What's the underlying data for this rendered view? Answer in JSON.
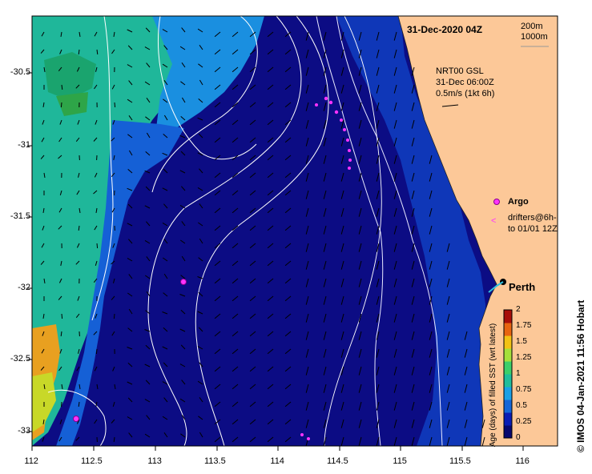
{
  "title": "31-Dec-2020 04Z",
  "isobath_legend": [
    "200m",
    "1000m"
  ],
  "current_info": [
    "NRT00 GSL",
    "31-Dec 06:00Z",
    "0.5m/s (1kt 6h)"
  ],
  "legend": {
    "argo": "Argo",
    "drifters": [
      "drifters@6h-",
      "to 01/01 12Z"
    ]
  },
  "city": "Perth",
  "colorbar": {
    "title": "Age (days) of filled SST (wrt latest)",
    "ticks": [
      "2",
      "1.75",
      "1.5",
      "1.25",
      "1",
      "0.75",
      "0.5",
      "0.25",
      "0"
    ],
    "colors": [
      "#08086e",
      "#0a1cb4",
      "#1466d8",
      "#1aa0e6",
      "#21bd9b",
      "#3ccf6a",
      "#a6e03a",
      "#f2c214",
      "#e86410",
      "#a80e0a"
    ]
  },
  "credit": "© IMOS 04-Jan-2021 11:56 Hobart",
  "axes": {
    "lon_ticks": [
      "112",
      "112.5",
      "113",
      "113.5",
      "114",
      "114.5",
      "115",
      "115.5",
      "116"
    ],
    "lat_ticks": [
      "-30.5",
      "-31",
      "-31.5",
      "-32",
      "-32.5",
      "-33"
    ]
  },
  "map": {
    "lon_range": [
      112,
      116.3
    ],
    "lat_range": [
      -30.1,
      -33.1
    ],
    "land_color": "#fcc898",
    "argo_color": "#ff33ff",
    "argo_floats": [
      [
        113.25,
        -31.95
      ],
      [
        112.35,
        -32.95
      ]
    ],
    "perth": [
      115.86,
      -31.95
    ]
  }
}
